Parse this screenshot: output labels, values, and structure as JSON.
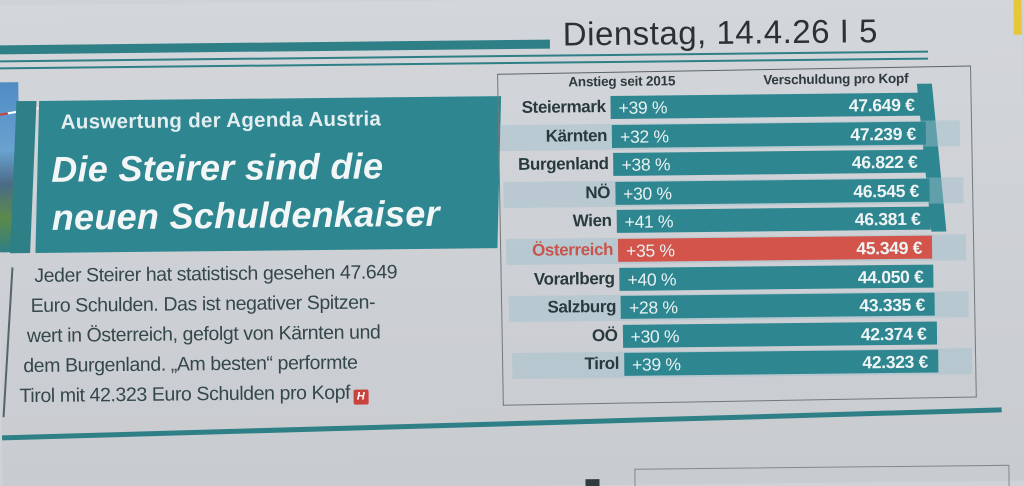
{
  "header": {
    "date_page": "Dienstag, 14.4.26  I  5"
  },
  "article": {
    "kicker": "Auswertung der Agenda Austria",
    "headline_lines": [
      "Die Steirer sind die",
      "neuen Schuldenkaiser"
    ],
    "body_lines": [
      "Jeder Steirer hat statistisch gesehen 47.649",
      "Euro Schulden. Das ist negativer Spitzen-",
      "wert in Österreich, gefolgt von Kärnten und",
      "dem Burgenland. „Am besten“ performte",
      "Tirol mit 42.323 Euro Schulden pro Kopf"
    ],
    "end_mark_icon": "H"
  },
  "table": {
    "col_increase": "Anstieg seit 2015",
    "col_debt": "Verschuldung pro Kopf",
    "rows": [
      {
        "region": "Steiermark",
        "increase": "+39 %",
        "debt": "47.649 €",
        "highlight": false
      },
      {
        "region": "Kärnten",
        "increase": "+32 %",
        "debt": "47.239 €",
        "highlight": false
      },
      {
        "region": "Burgenland",
        "increase": "+38 %",
        "debt": "46.822 €",
        "highlight": false
      },
      {
        "region": "NÖ",
        "increase": "+30 %",
        "debt": "46.545 €",
        "highlight": false
      },
      {
        "region": "Wien",
        "increase": "+41 %",
        "debt": "46.381 €",
        "highlight": false
      },
      {
        "region": "Österreich",
        "increase": "+35 %",
        "debt": "45.349 €",
        "highlight": true
      },
      {
        "region": "Vorarlberg",
        "increase": "+40 %",
        "debt": "44.050 €",
        "highlight": false
      },
      {
        "region": "Salzburg",
        "increase": "+28 %",
        "debt": "43.335 €",
        "highlight": false
      },
      {
        "region": "OÖ",
        "increase": "+30 %",
        "debt": "42.374 €",
        "highlight": false
      },
      {
        "region": "Tirol",
        "increase": "+39 %",
        "debt": "42.323 €",
        "highlight": false
      }
    ]
  },
  "colors": {
    "teal": "#2e8690",
    "highlight_red": "#d2544a",
    "paper": "#d0d3d7"
  }
}
